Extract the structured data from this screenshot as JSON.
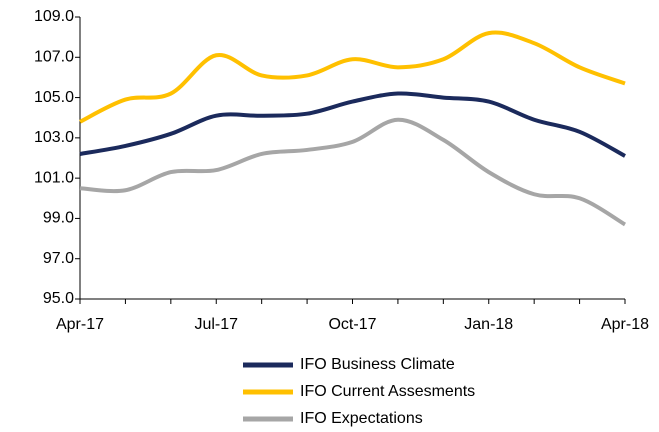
{
  "chart_data": {
    "type": "line",
    "categories": [
      "Apr-17",
      null,
      null,
      "Jul-17",
      null,
      null,
      "Oct-17",
      null,
      null,
      "Jan-18",
      null,
      null,
      "Apr-18"
    ],
    "series": [
      {
        "name": "IFO Business Climate",
        "color": "#1b2a5c",
        "values": [
          102.2,
          102.6,
          103.2,
          104.1,
          104.1,
          104.2,
          104.8,
          105.2,
          105.0,
          104.8,
          103.9,
          103.3,
          102.1
        ]
      },
      {
        "name": "IFO Current Assesments",
        "color": "#ffc000",
        "values": [
          103.8,
          104.9,
          105.2,
          107.1,
          106.1,
          106.1,
          106.9,
          106.5,
          106.9,
          108.2,
          107.7,
          106.5,
          105.7
        ]
      },
      {
        "name": "IFO Expectations",
        "color": "#a6a6a6",
        "values": [
          100.5,
          100.4,
          101.3,
          101.4,
          102.2,
          102.4,
          102.8,
          103.9,
          102.9,
          101.3,
          100.2,
          100.0,
          98.7
        ]
      }
    ],
    "ylim": [
      95,
      109
    ],
    "yticks": [
      {
        "value": 95,
        "label": "95.0"
      },
      {
        "value": 97,
        "label": "97.0"
      },
      {
        "value": 99,
        "label": "99.0"
      },
      {
        "value": 101,
        "label": "101.0"
      },
      {
        "value": 103,
        "label": "103.0"
      },
      {
        "value": 105,
        "label": "105.0"
      },
      {
        "value": 107,
        "label": "107.0"
      },
      {
        "value": 109,
        "label": "109.0"
      }
    ],
    "grid": false
  }
}
